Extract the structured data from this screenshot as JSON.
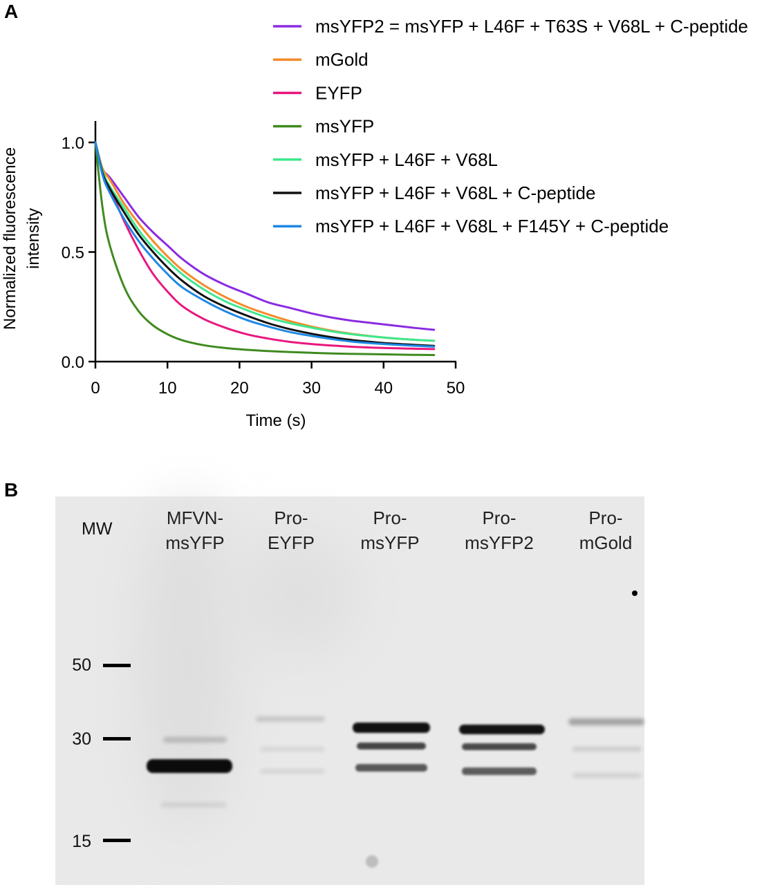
{
  "panel_a": {
    "letter": "A"
  },
  "panel_b": {
    "letter": "B",
    "mw_label": "MW",
    "markers": [
      {
        "label": "50",
        "kda": 50
      },
      {
        "label": "30",
        "kda": 30
      },
      {
        "label": "15",
        "kda": 15
      }
    ],
    "lanes": [
      {
        "line1": "MFVN-",
        "line2": "msYFP"
      },
      {
        "line1": "Pro-",
        "line2": "EYFP"
      },
      {
        "line1": "Pro-",
        "line2": "msYFP"
      },
      {
        "line1": "Pro-",
        "line2": "msYFP2"
      },
      {
        "line1": "Pro-",
        "line2": "mGold"
      }
    ]
  },
  "chart_data": {
    "type": "line",
    "title": "",
    "xlabel": "Time (s)",
    "ylabel_lines": [
      "Normalized fluorescence",
      "intensity"
    ],
    "xlim": [
      0,
      50
    ],
    "ylim": [
      0,
      1.0
    ],
    "xticks": [
      "0",
      "10",
      "20",
      "30",
      "40",
      "50"
    ],
    "yticks": [
      "0.0",
      "0.5",
      "1.0"
    ],
    "grid": false,
    "legend_position": "top-right",
    "x": [
      0,
      1,
      2,
      4,
      6,
      8,
      10,
      12,
      15,
      18,
      21,
      24,
      27,
      30,
      33,
      36,
      40,
      44,
      47
    ],
    "series": [
      {
        "name": "msYFP2 = msYFP + L46F + T63S + V68L + C-peptide",
        "color": "#8b2be2",
        "values": [
          1.0,
          0.88,
          0.84,
          0.75,
          0.66,
          0.59,
          0.53,
          0.47,
          0.4,
          0.35,
          0.31,
          0.27,
          0.245,
          0.22,
          0.2,
          0.185,
          0.17,
          0.155,
          0.145
        ]
      },
      {
        "name": "mGold",
        "color": "#f5892a",
        "values": [
          1.0,
          0.88,
          0.83,
          0.72,
          0.63,
          0.55,
          0.48,
          0.42,
          0.35,
          0.295,
          0.25,
          0.215,
          0.185,
          0.16,
          0.14,
          0.125,
          0.11,
          0.1,
          0.095
        ]
      },
      {
        "name": "EYFP",
        "color": "#e8177d",
        "values": [
          1.0,
          0.86,
          0.79,
          0.64,
          0.51,
          0.4,
          0.32,
          0.255,
          0.195,
          0.155,
          0.125,
          0.105,
          0.09,
          0.08,
          0.073,
          0.067,
          0.062,
          0.059,
          0.057
        ]
      },
      {
        "name": "msYFP",
        "color": "#3f8a1f",
        "values": [
          1.0,
          0.7,
          0.53,
          0.34,
          0.23,
          0.165,
          0.125,
          0.098,
          0.075,
          0.062,
          0.054,
          0.048,
          0.044,
          0.04,
          0.037,
          0.035,
          0.033,
          0.031,
          0.03
        ]
      },
      {
        "name": "msYFP + L46F + V68L",
        "color": "#3de88d",
        "values": [
          1.0,
          0.87,
          0.8,
          0.7,
          0.6,
          0.52,
          0.46,
          0.4,
          0.33,
          0.275,
          0.235,
          0.2,
          0.175,
          0.155,
          0.137,
          0.123,
          0.11,
          0.1,
          0.095
        ]
      },
      {
        "name": "msYFP + L46F + V68L + C-peptide",
        "color": "#111111",
        "values": [
          1.0,
          0.86,
          0.79,
          0.68,
          0.58,
          0.5,
          0.43,
          0.37,
          0.3,
          0.25,
          0.21,
          0.175,
          0.148,
          0.127,
          0.11,
          0.097,
          0.085,
          0.077,
          0.072
        ]
      },
      {
        "name": "msYFP + L46F + V68L + F145Y + C-peptide",
        "color": "#1e88e5",
        "values": [
          1.0,
          0.85,
          0.77,
          0.65,
          0.55,
          0.47,
          0.4,
          0.34,
          0.28,
          0.23,
          0.19,
          0.16,
          0.135,
          0.117,
          0.102,
          0.09,
          0.08,
          0.073,
          0.068
        ]
      }
    ]
  }
}
